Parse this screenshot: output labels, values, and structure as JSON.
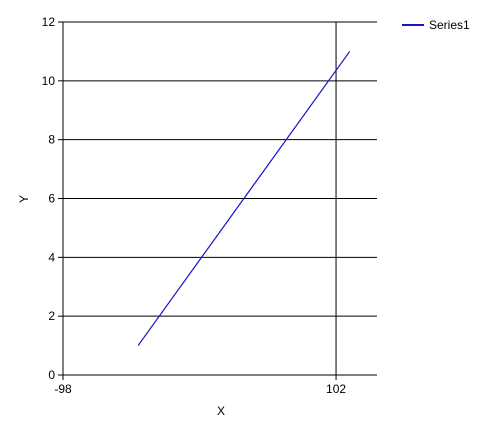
{
  "chart_data": {
    "type": "line",
    "xlabel": "X",
    "ylabel": "Y",
    "xlim": [
      -98,
      132
    ],
    "ylim": [
      0,
      12
    ],
    "x_ticks": [
      -98,
      102
    ],
    "y_ticks": [
      0,
      2,
      4,
      6,
      8,
      10,
      12
    ],
    "grid": true,
    "legend_position": "top-right",
    "series": [
      {
        "name": "Series1",
        "color": "#1414C8",
        "x": [
          -43,
          112
        ],
        "y": [
          1,
          11
        ]
      }
    ]
  }
}
